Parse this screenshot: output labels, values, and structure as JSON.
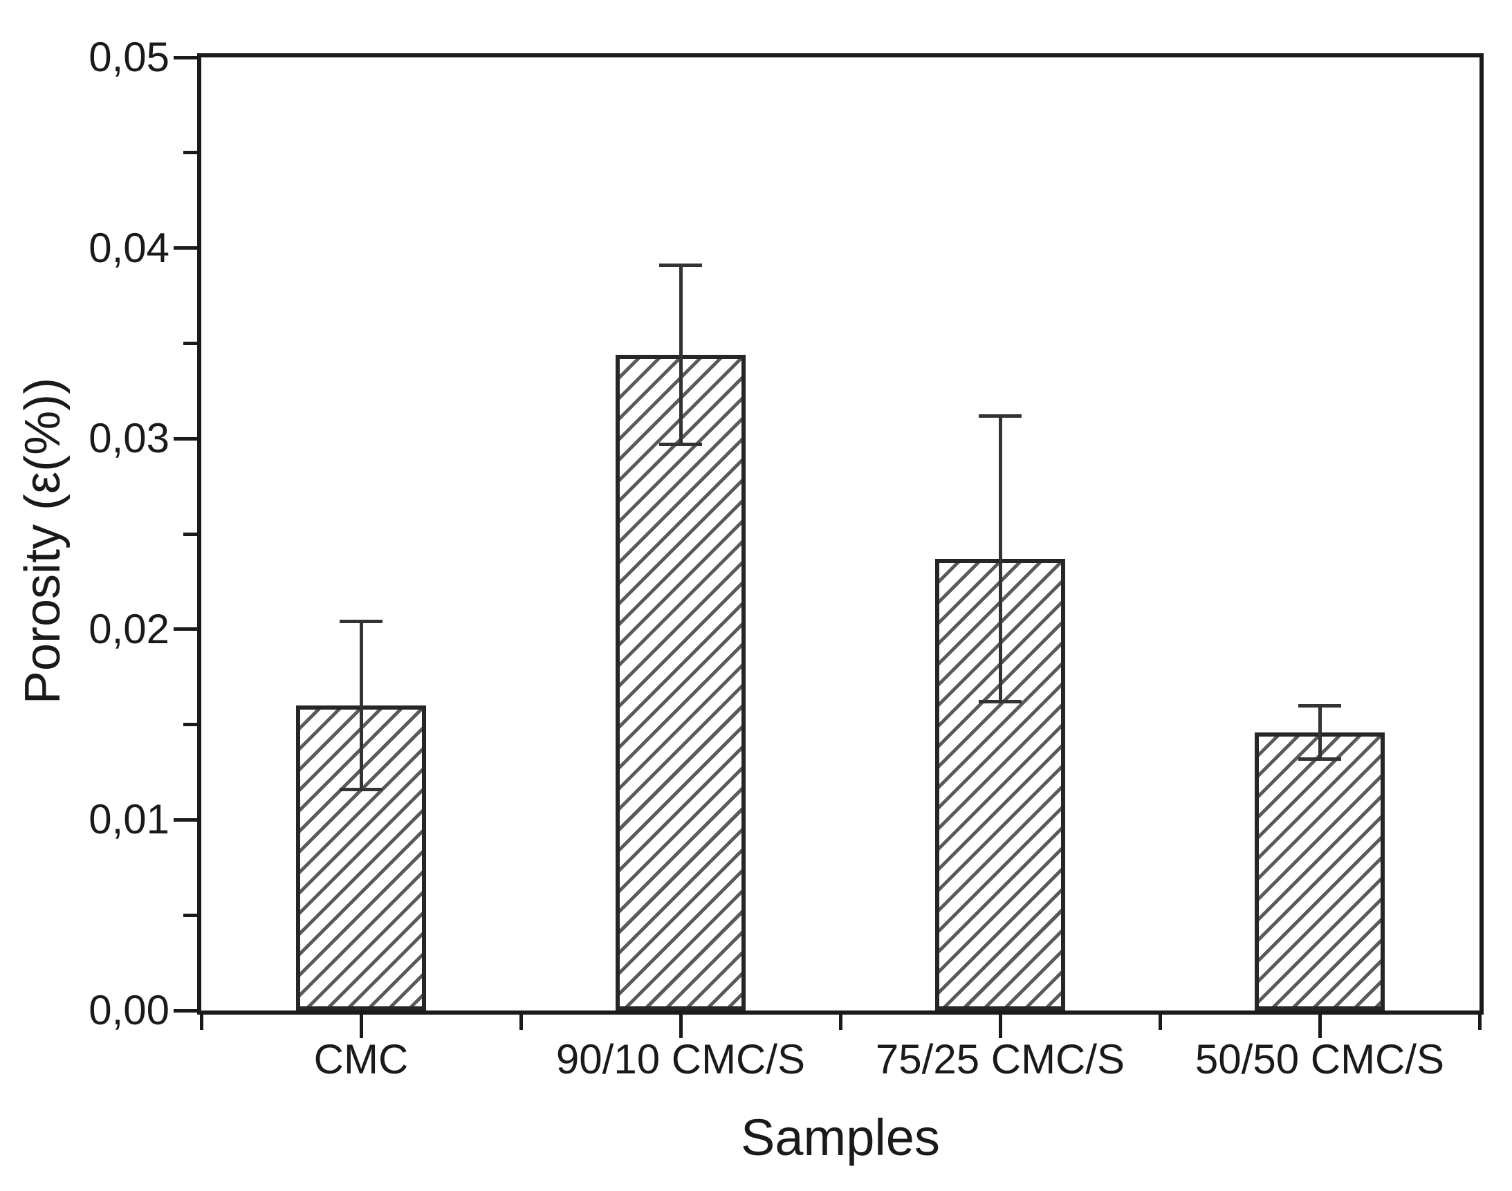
{
  "figure": {
    "x_axis_title": "Samples",
    "y_axis_title": "Porosity (ε(%))"
  },
  "chart_data": {
    "type": "bar",
    "title": "",
    "xlabel": "Samples",
    "ylabel": "Porosity (ε(%))",
    "categories": [
      "CMC",
      "90/10 CMC/S",
      "75/25 CMC/S",
      "50/50 CMC/S"
    ],
    "values": [
      0.016,
      0.0344,
      0.0237,
      0.0146
    ],
    "error_bars": [
      0.0044,
      0.0047,
      0.0075,
      0.0014
    ],
    "ylim": [
      0,
      0.05
    ],
    "y_major_tick_step": 0.01,
    "y_minor_tick_step": 0.005,
    "y_tick_labels": [
      "0,00",
      "0,01",
      "0,02",
      "0,03",
      "0,04",
      "0,05"
    ],
    "decimal_separator": ",",
    "grid": false,
    "legend": "none",
    "bar_hatch": "diagonal-forward-slash",
    "bar_width_fraction": 0.405,
    "colors": {
      "bar_fill": "#ffffff",
      "hatch_line": "#5a5a5a",
      "bar_outline": "#262626",
      "axis": "#1a1a1a",
      "error_bar": "#333333",
      "background": "#ffffff"
    }
  }
}
